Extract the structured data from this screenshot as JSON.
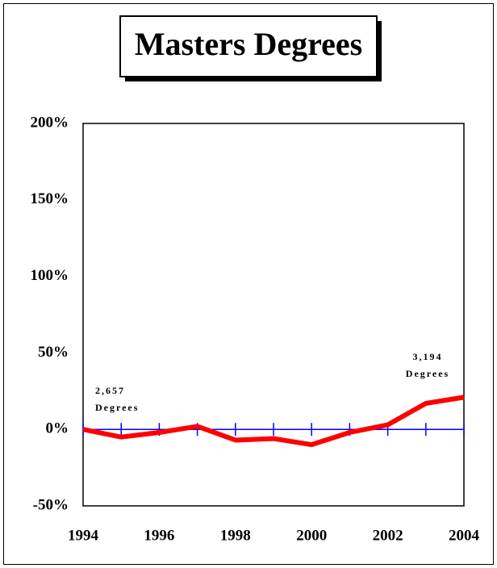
{
  "chart_data": {
    "type": "line",
    "title": "Masters Degrees",
    "x": [
      1994,
      1995,
      1996,
      1997,
      1998,
      1999,
      2000,
      2001,
      2002,
      2003,
      2004
    ],
    "series": [
      {
        "name": "Masters Degrees",
        "color": "#ff0000",
        "values": [
          0,
          -5,
          -2,
          2,
          -7,
          -6,
          -10,
          -2,
          3,
          17,
          21
        ]
      }
    ],
    "xlim": [
      1994,
      2004
    ],
    "xticks": [
      1994,
      1996,
      1998,
      2000,
      2002,
      2004
    ],
    "ylim": [
      -50,
      200
    ],
    "yticks": [
      {
        "value": -50,
        "label": "-50%"
      },
      {
        "value": 0,
        "label": "0%"
      },
      {
        "value": 50,
        "label": "50%"
      },
      {
        "value": 100,
        "label": "100%"
      },
      {
        "value": 150,
        "label": "150%"
      },
      {
        "value": 200,
        "label": "200%"
      }
    ],
    "reference_line": {
      "value": 0,
      "color": "#0000ff"
    },
    "annotations": [
      {
        "lines": [
          "2,657",
          "Degrees"
        ]
      },
      {
        "lines": [
          "3,194",
          "Degrees"
        ]
      }
    ]
  }
}
